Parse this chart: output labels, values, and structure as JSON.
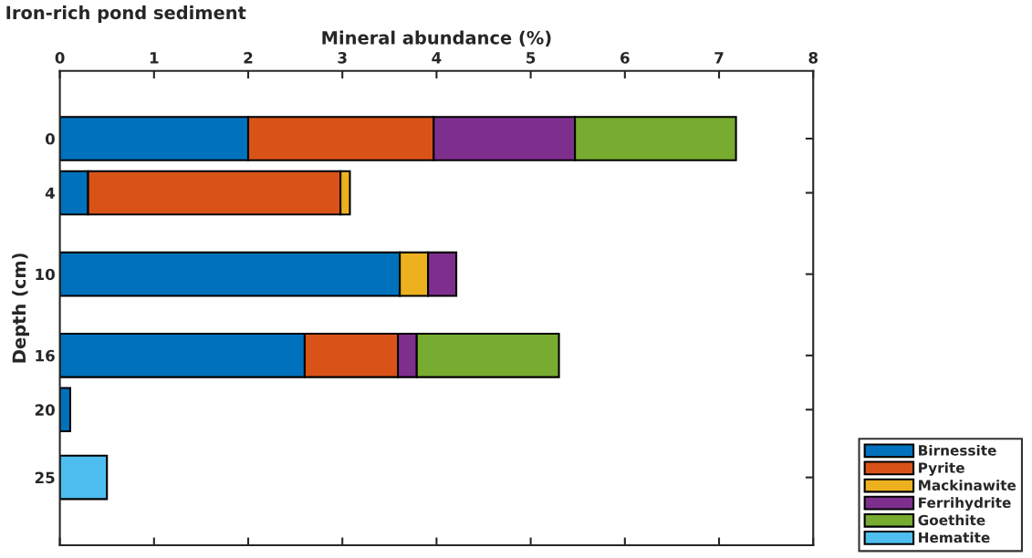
{
  "chart_data": {
    "type": "bar",
    "orientation": "horizontal",
    "stacked": true,
    "title": "Iron-rich pond sediment",
    "xlabel": "Mineral abundance (%)",
    "ylabel": "Depth (cm)",
    "x": [
      0,
      4,
      10,
      16,
      20,
      25
    ],
    "series": [
      {
        "name": "Birnessite",
        "color": "#0072bd",
        "values": [
          2.0,
          0.3,
          3.61,
          2.6,
          0.11,
          null
        ]
      },
      {
        "name": "Pyrite",
        "color": "#d95319",
        "values": [
          1.97,
          2.68,
          null,
          0.99,
          null,
          null
        ]
      },
      {
        "name": "Mackinawite",
        "color": "#edb120",
        "values": [
          null,
          0.1,
          0.3,
          null,
          null,
          null
        ]
      },
      {
        "name": "Ferrihydrite",
        "color": "#7e2f8e",
        "values": [
          1.5,
          null,
          0.3,
          0.2,
          null,
          null
        ]
      },
      {
        "name": "Goethite",
        "color": "#77ac30",
        "values": [
          1.71,
          null,
          null,
          1.51,
          null,
          null
        ]
      },
      {
        "name": "Hematite",
        "color": "#4dbeee",
        "values": [
          null,
          null,
          null,
          null,
          null,
          0.5
        ]
      }
    ],
    "xlim": [
      0,
      8
    ],
    "xticks": [
      0,
      1,
      2,
      3,
      4,
      5,
      6,
      7,
      8
    ],
    "ylim": [
      30,
      -5
    ],
    "yticks": [
      0,
      4,
      10,
      16,
      20,
      25
    ],
    "grid": false,
    "legend": "bottom right"
  }
}
